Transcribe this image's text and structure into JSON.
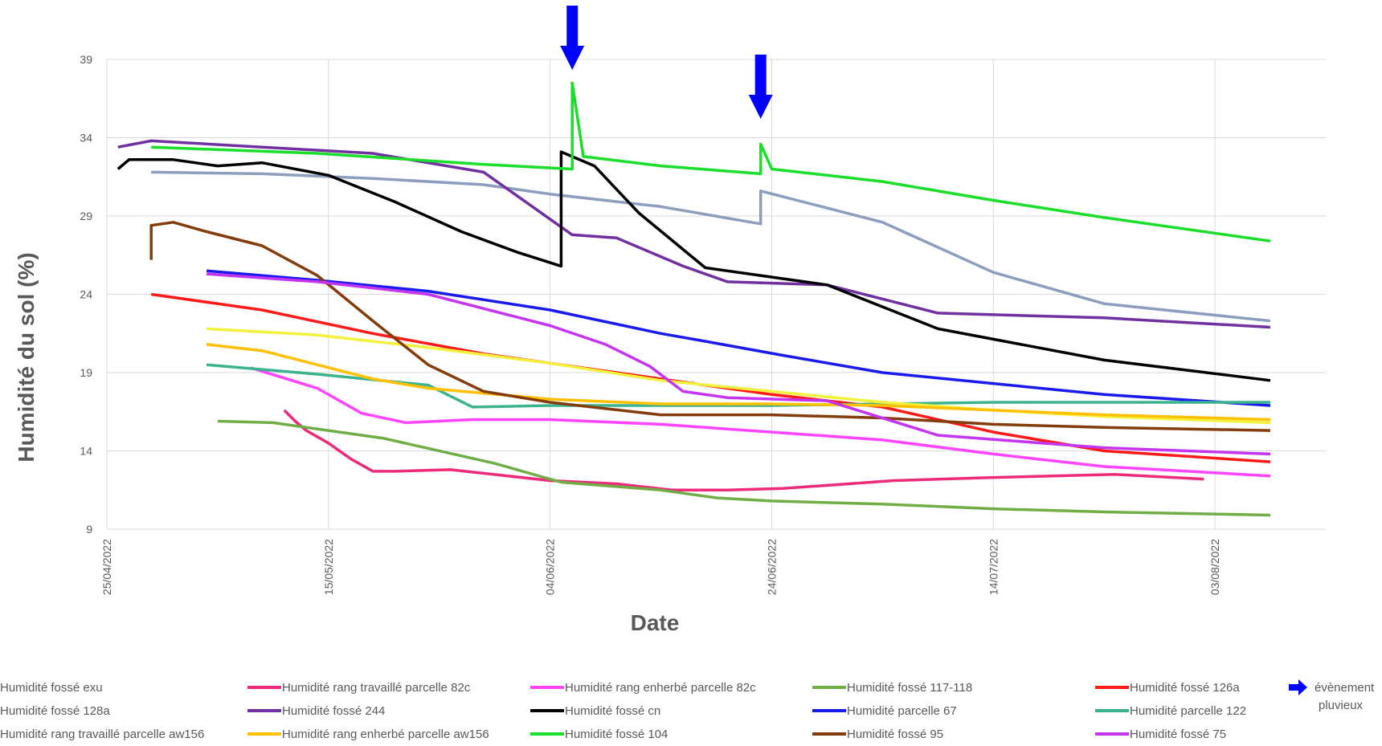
{
  "chart_data": {
    "type": "line",
    "title": "",
    "xlabel": "Date",
    "ylabel": "Humidité du sol (%)",
    "ylim": [
      9,
      39
    ],
    "yticks": [
      "9",
      "14",
      "19",
      "24",
      "29",
      "34",
      "39"
    ],
    "xlim": [
      "2022-04-25",
      "2022-08-13"
    ],
    "xticks": [
      "25/04/2022",
      "15/05/2022",
      "04/06/2022",
      "24/06/2022",
      "14/07/2022",
      "03/08/2022"
    ],
    "grid": true,
    "legend_position": "bottom",
    "events": {
      "label": "évènement pluvieux",
      "color": "#0000ff",
      "dates": [
        "2022-06-06",
        "2022-06-23"
      ]
    },
    "series": [
      {
        "name": "Humidité fossé exu",
        "color": "#c9a0dc",
        "x": [],
        "y": []
      },
      {
        "name": "Humidité rang travaillé parcelle 82c",
        "color": "#ee2a7b",
        "x": [
          "2022-05-11",
          "2022-05-12",
          "2022-05-13",
          "2022-05-15",
          "2022-05-17",
          "2022-05-19",
          "2022-05-21",
          "2022-05-26",
          "2022-06-04",
          "2022-06-10",
          "2022-06-15",
          "2022-06-20",
          "2022-06-25",
          "2022-07-05",
          "2022-07-14",
          "2022-07-25",
          "2022-08-02"
        ],
        "y": [
          16.6,
          15.9,
          15.3,
          14.5,
          13.5,
          12.7,
          12.7,
          12.8,
          12.1,
          11.9,
          11.5,
          11.5,
          11.6,
          12.1,
          12.3,
          12.5,
          12.2
        ]
      },
      {
        "name": "Humidité rang enherbé parcelle 82c",
        "color": "#ff44ff",
        "x": [
          "2022-05-08",
          "2022-05-14",
          "2022-05-18",
          "2022-05-22",
          "2022-05-28",
          "2022-06-04",
          "2022-06-14",
          "2022-06-24",
          "2022-07-04",
          "2022-07-14",
          "2022-07-24",
          "2022-08-08"
        ],
        "y": [
          19.3,
          18.0,
          16.4,
          15.8,
          16.0,
          16.0,
          15.7,
          15.2,
          14.7,
          13.8,
          13.0,
          12.4
        ]
      },
      {
        "name": "Humidité fossé 117-118",
        "color": "#70ad47",
        "x": [
          "2022-05-05",
          "2022-05-10",
          "2022-05-20",
          "2022-05-30",
          "2022-06-05",
          "2022-06-14",
          "2022-06-19",
          "2022-06-24",
          "2022-07-04",
          "2022-07-14",
          "2022-07-24",
          "2022-08-08"
        ],
        "y": [
          15.9,
          15.8,
          14.8,
          13.2,
          12.0,
          11.5,
          11.0,
          10.8,
          10.6,
          10.3,
          10.1,
          9.9
        ]
      },
      {
        "name": "Humidité fossé 126a",
        "color": "#ff1a1a",
        "x": [
          "2022-04-29",
          "2022-05-09",
          "2022-05-19",
          "2022-05-29",
          "2022-06-04",
          "2022-06-14",
          "2022-06-24",
          "2022-07-04",
          "2022-07-14",
          "2022-07-24",
          "2022-08-08"
        ],
        "y": [
          24.0,
          23.0,
          21.5,
          20.2,
          19.6,
          18.6,
          17.6,
          16.8,
          15.2,
          14.0,
          13.3
        ]
      },
      {
        "name": "Humidité fossé 128a",
        "color": "#8c9dbe",
        "x": [
          "2022-04-29",
          "2022-05-09",
          "2022-05-19",
          "2022-05-29",
          "2022-06-04",
          "2022-06-14",
          "2022-06-23",
          "2022-06-23",
          "2022-07-04",
          "2022-07-14",
          "2022-07-24",
          "2022-08-08"
        ],
        "y": [
          31.8,
          31.7,
          31.4,
          31.0,
          30.4,
          29.6,
          28.5,
          30.6,
          28.6,
          25.4,
          23.4,
          22.3
        ]
      },
      {
        "name": "Humidité fossé 244",
        "color": "#7030a0",
        "x": [
          "2022-04-26",
          "2022-04-29",
          "2022-05-09",
          "2022-05-19",
          "2022-05-29",
          "2022-06-04",
          "2022-06-06",
          "2022-06-10",
          "2022-06-16",
          "2022-06-20",
          "2022-06-29",
          "2022-07-09",
          "2022-07-24",
          "2022-08-08"
        ],
        "y": [
          33.4,
          33.8,
          33.4,
          33.0,
          31.8,
          28.8,
          27.8,
          27.6,
          25.8,
          24.8,
          24.6,
          22.8,
          22.5,
          21.9
        ]
      },
      {
        "name": "Humidité fossé cn",
        "color": "#000000",
        "x": [
          "2022-04-26",
          "2022-04-27",
          "2022-05-01",
          "2022-05-05",
          "2022-05-09",
          "2022-05-15",
          "2022-05-21",
          "2022-05-27",
          "2022-06-01",
          "2022-06-05",
          "2022-06-05",
          "2022-06-08",
          "2022-06-12",
          "2022-06-18",
          "2022-06-29",
          "2022-07-09",
          "2022-07-24",
          "2022-08-08"
        ],
        "y": [
          32.0,
          32.6,
          32.6,
          32.2,
          32.4,
          31.6,
          29.9,
          28.0,
          26.7,
          25.8,
          33.1,
          32.2,
          29.2,
          25.7,
          24.6,
          21.8,
          19.8,
          18.5
        ]
      },
      {
        "name": "Humidité parcelle 67",
        "color": "#1a1aee",
        "x": [
          "2022-05-04",
          "2022-05-14",
          "2022-05-24",
          "2022-06-04",
          "2022-06-14",
          "2022-06-18",
          "2022-06-25",
          "2022-07-04",
          "2022-07-14",
          "2022-07-24",
          "2022-08-08"
        ],
        "y": [
          25.5,
          24.9,
          24.2,
          23.0,
          21.5,
          21.0,
          20.1,
          19.0,
          18.3,
          17.6,
          16.9
        ]
      },
      {
        "name": "Humidité parcelle 122",
        "color": "#3cb38f",
        "x": [
          "2022-05-04",
          "2022-05-14",
          "2022-05-24",
          "2022-05-28",
          "2022-06-04",
          "2022-06-14",
          "2022-06-24",
          "2022-07-04",
          "2022-07-14",
          "2022-08-08"
        ],
        "y": [
          19.5,
          18.9,
          18.2,
          16.8,
          16.9,
          16.9,
          16.9,
          17.0,
          17.1,
          17.1
        ]
      },
      {
        "name": "Humidité rang travaillé parcelle aw156",
        "color": "#f2f23c",
        "x": [
          "2022-05-04",
          "2022-05-14",
          "2022-05-24",
          "2022-06-04",
          "2022-06-14",
          "2022-06-24",
          "2022-07-04",
          "2022-07-14",
          "2022-07-24",
          "2022-08-08"
        ],
        "y": [
          21.8,
          21.4,
          20.6,
          19.6,
          18.5,
          17.8,
          17.1,
          16.6,
          16.2,
          15.8
        ]
      },
      {
        "name": "Humidité  rang enherbé parcelle aw156",
        "color": "#ffc000",
        "x": [
          "2022-05-04",
          "2022-05-09",
          "2022-05-14",
          "2022-05-19",
          "2022-05-24",
          "2022-06-04",
          "2022-06-14",
          "2022-06-24",
          "2022-07-04",
          "2022-07-14",
          "2022-07-24",
          "2022-08-08"
        ],
        "y": [
          20.8,
          20.4,
          19.5,
          18.6,
          18.0,
          17.3,
          17.0,
          17.0,
          16.9,
          16.6,
          16.3,
          16.0
        ]
      },
      {
        "name": "Humidité fossé 104",
        "color": "#1adf2a",
        "x": [
          "2022-04-29",
          "2022-05-14",
          "2022-05-29",
          "2022-06-06",
          "2022-06-06",
          "2022-06-07",
          "2022-06-14",
          "2022-06-23",
          "2022-06-23",
          "2022-06-24",
          "2022-07-04",
          "2022-07-14",
          "2022-07-24",
          "2022-08-08"
        ],
        "y": [
          33.4,
          33.0,
          32.3,
          32.0,
          37.5,
          32.8,
          32.2,
          31.7,
          33.6,
          32.0,
          31.2,
          30.0,
          28.9,
          27.4
        ]
      },
      {
        "name": "Humidité fossé 95",
        "color": "#843c0c",
        "x": [
          "2022-04-29",
          "2022-04-29",
          "2022-05-01",
          "2022-05-04",
          "2022-05-09",
          "2022-05-14",
          "2022-05-19",
          "2022-05-24",
          "2022-05-29",
          "2022-06-04",
          "2022-06-14",
          "2022-06-24",
          "2022-07-04",
          "2022-07-14",
          "2022-07-24",
          "2022-08-08"
        ],
        "y": [
          26.2,
          28.4,
          28.6,
          28.0,
          27.1,
          25.2,
          22.3,
          19.5,
          17.8,
          17.1,
          16.3,
          16.3,
          16.1,
          15.7,
          15.5,
          15.3
        ]
      },
      {
        "name": "Humidité fossé 75",
        "color": "#c535f0",
        "x": [
          "2022-05-04",
          "2022-05-14",
          "2022-05-24",
          "2022-06-04",
          "2022-06-09",
          "2022-06-13",
          "2022-06-16",
          "2022-06-20",
          "2022-06-29",
          "2022-07-09",
          "2022-07-24",
          "2022-08-08"
        ],
        "y": [
          25.3,
          24.8,
          24.0,
          22.0,
          20.8,
          19.4,
          17.8,
          17.4,
          17.2,
          15.0,
          14.2,
          13.8
        ]
      }
    ]
  }
}
